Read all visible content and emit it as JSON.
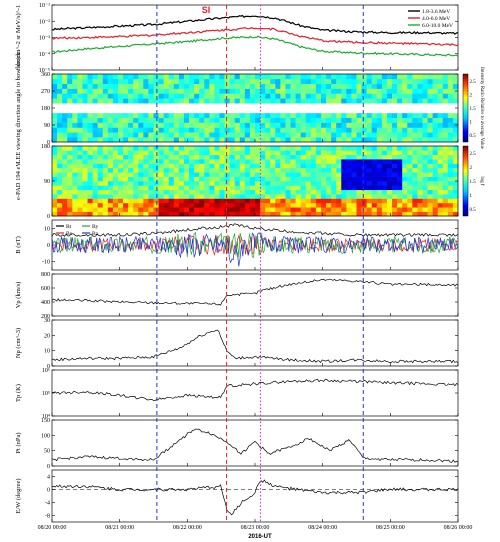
{
  "chart_data": {
    "type": "line",
    "time_axis": {
      "ticks": [
        "08/20 00:00",
        "08/21 00:00",
        "08/22 00:00",
        "08/23 00:00",
        "08/24 00:00",
        "08/25 00:00",
        "08/26 00:00"
      ],
      "label": "2016-UT",
      "range_days": [
        0,
        6
      ]
    },
    "event_lines": [
      {
        "day": 1.55,
        "color": "#2233cc",
        "style": "dashed"
      },
      {
        "day": 2.58,
        "color": "#e0202a",
        "style": "dashed",
        "label": "SI"
      },
      {
        "day": 3.08,
        "color": "#cc22cc",
        "style": "dotted"
      },
      {
        "day": 4.6,
        "color": "#2233cc",
        "style": "dashed"
      }
    ],
    "panels": [
      {
        "id": "flux",
        "ylabel": "flux(cm^-2 sr MeV/s)^-1",
        "scale": "log",
        "ylim": [
          1e-05,
          0.1
        ],
        "yticks": [
          "10⁻¹",
          "10⁻²",
          "10⁻³",
          "10⁻⁴",
          "10⁻⁵"
        ],
        "yvalues": [
          -1,
          -2,
          -3,
          -4,
          -5
        ],
        "legend": [
          "1.8-3.6 MeV",
          "4.0-6.0 MeV",
          "6.0-10.0 MeV"
        ],
        "series": [
          {
            "name": "1.8-3.6 MeV",
            "color": "#000000",
            "days": [
              0,
              0.5,
              1,
              1.5,
              2,
              2.5,
              3,
              3.3,
              3.7,
              4,
              4.5,
              5,
              5.5,
              6
            ],
            "log10": [
              -2.5,
              -2.4,
              -2.3,
              -2.2,
              -2.0,
              -1.8,
              -1.65,
              -1.8,
              -2.3,
              -2.55,
              -2.65,
              -2.7,
              -2.7,
              -2.75
            ]
          },
          {
            "name": "4.0-6.0 MeV",
            "color": "#e0202a",
            "days": [
              0,
              0.5,
              1,
              1.5,
              2,
              2.5,
              3,
              3.3,
              3.7,
              4,
              4.5,
              5,
              5.5,
              6
            ],
            "log10": [
              -3.05,
              -3.0,
              -2.95,
              -2.85,
              -2.7,
              -2.55,
              -2.4,
              -2.5,
              -2.95,
              -3.2,
              -3.3,
              -3.35,
              -3.4,
              -3.45
            ]
          },
          {
            "name": "6.0-10.0 MeV",
            "color": "#22aa33",
            "days": [
              0,
              0.5,
              1,
              1.5,
              2,
              2.5,
              3,
              3.3,
              3.7,
              4,
              4.5,
              5,
              5.5,
              6
            ],
            "log10": [
              -3.9,
              -3.7,
              -3.55,
              -3.4,
              -3.25,
              -3.05,
              -2.95,
              -3.1,
              -3.6,
              -3.85,
              -3.95,
              -4.0,
              -4.05,
              -4.1
            ]
          }
        ]
      },
      {
        "id": "lee",
        "ylabel": "LEE viewing direction angle to bow shock",
        "ylim": [
          0,
          360
        ],
        "yticks": [
          "0",
          "90",
          "180",
          "270",
          "360"
        ],
        "yvalues": [
          0,
          90,
          180,
          270,
          360
        ],
        "colorbar": {
          "ticks": [
            "0.5",
            "1",
            "1.5",
            "2",
            "2.5"
          ],
          "label": "Intensity Ratio Relative to average Value"
        }
      },
      {
        "id": "pad",
        "ylabel": "e-PAD 194 eV",
        "ylim": [
          0,
          180
        ],
        "yticks": [
          "0",
          "90",
          "180"
        ],
        "yvalues": [
          0,
          90,
          180
        ],
        "colorbar": {
          "ticks": [
            "0.5",
            "1",
            "1.5",
            "2",
            "2.5"
          ],
          "label": "log f"
        }
      },
      {
        "id": "bfield",
        "ylabel": "B (nT)",
        "ylim": [
          -15,
          15
        ],
        "yticks": [
          "-10",
          "0",
          "10"
        ],
        "yvalues": [
          -10,
          0,
          10
        ],
        "legend": [
          "Bt",
          "Bx",
          "By",
          "Bz"
        ],
        "series": [
          {
            "name": "Bt",
            "color": "#000000",
            "days": [
              0,
              1,
              1.5,
              2,
              2.5,
              2.7,
              3,
              3.5,
              4,
              4.5,
              5,
              6
            ],
            "values": [
              6,
              6,
              7,
              9,
              11,
              12,
              10,
              8,
              7,
              6,
              6,
              6
            ]
          },
          {
            "name": "Bx",
            "color": "#e0202a",
            "amp": 4,
            "seed": 3
          },
          {
            "name": "By",
            "color": "#22aa33",
            "amp": 5,
            "seed": 7
          },
          {
            "name": "Bz",
            "color": "#2233cc",
            "amp": 5,
            "seed": 11
          }
        ]
      },
      {
        "id": "vp",
        "ylabel": "Vp (km/s)",
        "ylim": [
          200,
          800
        ],
        "yticks": [
          "200",
          "400",
          "600",
          "800"
        ],
        "yvalues": [
          200,
          400,
          600,
          800
        ],
        "series": [
          {
            "name": "Vp",
            "color": "#000000",
            "days": [
              0,
              0.5,
              1,
              1.5,
              2,
              2.5,
              2.58,
              3,
              3.08,
              3.5,
              4,
              4.5,
              5,
              5.5,
              6
            ],
            "values": [
              430,
              420,
              400,
              390,
              380,
              370,
              500,
              520,
              560,
              650,
              720,
              700,
              650,
              650,
              640
            ]
          }
        ]
      },
      {
        "id": "np",
        "ylabel": "Np (cm^-3)",
        "ylim": [
          0,
          30
        ],
        "yticks": [
          "0",
          "10",
          "20",
          "30"
        ],
        "yvalues": [
          0,
          10,
          20,
          30
        ],
        "series": [
          {
            "name": "Np",
            "color": "#000000",
            "days": [
              0,
              0.5,
              1,
              1.5,
              1.9,
              2.2,
              2.45,
              2.58,
              2.7,
              3,
              3.5,
              4,
              4.5,
              5,
              6
            ],
            "values": [
              4,
              5,
              5,
              6,
              12,
              20,
              24,
              10,
              5,
              6,
              4,
              3,
              4,
              3,
              3
            ]
          }
        ]
      },
      {
        "id": "tp",
        "ylabel": "Tp (K)",
        "scale": "log",
        "ylim": [
          10000.0,
          1000000.0
        ],
        "yticks": [
          "10⁶",
          "10⁵",
          "10⁴"
        ],
        "yvalues": [
          6,
          5,
          4
        ],
        "series": [
          {
            "name": "Tp",
            "color": "#000000",
            "days": [
              0,
              0.5,
              1,
              1.5,
              2,
              2.5,
              2.58,
              3,
              3.5,
              4,
              4.5,
              5,
              5.5,
              6
            ],
            "log10": [
              5.0,
              5.05,
              4.9,
              4.7,
              4.9,
              4.8,
              5.3,
              5.4,
              5.5,
              5.55,
              5.5,
              5.45,
              5.4,
              5.35
            ]
          }
        ]
      },
      {
        "id": "pt",
        "ylabel": "Pt (nPa)",
        "ylim": [
          0,
          150
        ],
        "yticks": [
          "0",
          "50",
          "100",
          "150"
        ],
        "yvalues": [
          0,
          50,
          100,
          150
        ],
        "series": [
          {
            "name": "Pt",
            "color": "#000000",
            "days": [
              0,
              0.5,
              1,
              1.5,
              1.8,
              2.1,
              2.3,
              2.58,
              2.8,
              3,
              3.2,
              3.5,
              3.8,
              4.1,
              4.4,
              4.6,
              5,
              5.5,
              6
            ],
            "values": [
              20,
              30,
              25,
              20,
              70,
              120,
              110,
              80,
              40,
              80,
              40,
              60,
              90,
              50,
              85,
              25,
              20,
              20,
              15
            ]
          }
        ]
      },
      {
        "id": "ew",
        "ylabel": "E/W (degree)",
        "ylim": [
          -10,
          6
        ],
        "yticks": [
          "-8",
          "-4",
          "0",
          "4"
        ],
        "yvalues": [
          -8,
          -4,
          0,
          4
        ],
        "series": [
          {
            "name": "E/W",
            "color": "#000000",
            "days": [
              0,
              0.5,
              1,
              1.5,
              2,
              2.5,
              2.58,
              2.65,
              2.8,
              3,
              3.08,
              3.3,
              3.6,
              4,
              4.5,
              5,
              5.5,
              6
            ],
            "values": [
              1,
              1,
              0,
              0,
              0,
              1,
              -6,
              -8,
              -4,
              -1,
              3,
              1,
              0,
              -1,
              -1,
              0,
              0,
              0
            ]
          }
        ]
      }
    ]
  },
  "labels": {
    "si": "SI",
    "xaxis": "2016-UT"
  }
}
